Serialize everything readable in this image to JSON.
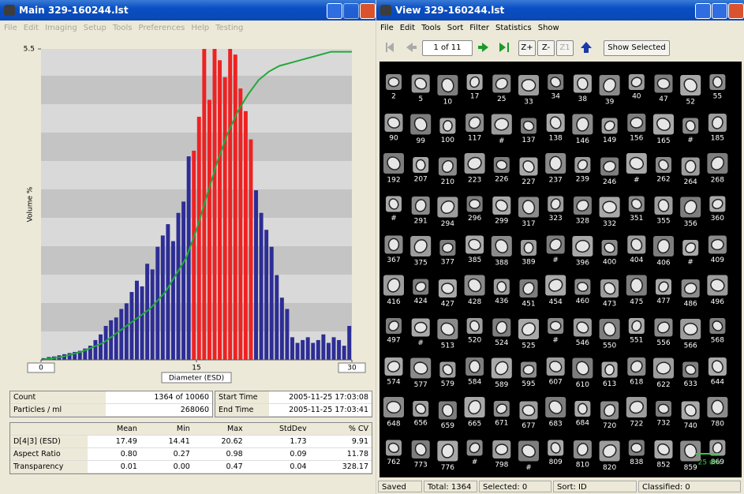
{
  "main_window": {
    "title": "Main  329-160244.lst",
    "menu": [
      "File",
      "Edit",
      "Imaging",
      "Setup",
      "Tools",
      "Preferences",
      "Help",
      "Testing"
    ],
    "summary": [
      [
        "Count",
        "1364  of  10060"
      ],
      [
        "Particles / ml",
        "268060"
      ]
    ],
    "times": [
      [
        "Start Time",
        "2005-11-25  17:03:08"
      ],
      [
        "End Time",
        "2005-11-25  17:03:41"
      ]
    ],
    "stats_table": {
      "header": [
        "Mean",
        "Min",
        "Max",
        "StdDev",
        "% CV"
      ],
      "rows": [
        [
          "D[4|3] (ESD)",
          "17.49",
          "14.41",
          "20.62",
          "1.73",
          "9.91"
        ],
        [
          "Aspect Ratio",
          "0.80",
          "0.27",
          "0.98",
          "0.09",
          "11.78"
        ],
        [
          "Transparency",
          "0.01",
          "0.00",
          "0.47",
          "0.04",
          "328.17"
        ]
      ]
    }
  },
  "chart_data": {
    "type": "histogram",
    "xlabel": "Diameter (ESD)",
    "ylabel": "Volume %",
    "bins": [
      0,
      0.5,
      1,
      1.5,
      2,
      2.5,
      3,
      3.5,
      4,
      4.5,
      5,
      5.5,
      6,
      6.5,
      7,
      7.5,
      8,
      8.5,
      9,
      9.5,
      10,
      10.5,
      11,
      11.5,
      12,
      12.5,
      13,
      13.5,
      14,
      14.5,
      15,
      15.5,
      16,
      16.5,
      17,
      17.5,
      18,
      18.5,
      19,
      19.5,
      20,
      20.5,
      21,
      21.5,
      22,
      22.5,
      23,
      23.5,
      24,
      24.5,
      25,
      25.5,
      26,
      26.5,
      27,
      27.5,
      28,
      28.5,
      29,
      29.5,
      30
    ],
    "values": [
      0.03,
      0.05,
      0.06,
      0.08,
      0.1,
      0.12,
      0.14,
      0.16,
      0.2,
      0.25,
      0.35,
      0.45,
      0.6,
      0.7,
      0.75,
      0.9,
      1.0,
      1.2,
      1.4,
      1.3,
      1.7,
      1.6,
      2.0,
      2.2,
      2.4,
      2.1,
      2.6,
      2.8,
      3.6,
      3.7,
      4.3,
      5.5,
      4.6,
      5.5,
      5.3,
      5.0,
      5.5,
      5.4,
      4.8,
      4.4,
      3.9,
      3.0,
      2.6,
      2.3,
      2.0,
      1.5,
      1.1,
      0.9,
      0.4,
      0.3,
      0.35,
      0.4,
      0.3,
      0.35,
      0.45,
      0.3,
      0.4,
      0.35,
      0.25,
      0.6
    ],
    "bar_colors": [
      "#2d2d95",
      "#2d2d95",
      "#2d2d95",
      "#2d2d95",
      "#2d2d95",
      "#2d2d95",
      "#2d2d95",
      "#2d2d95",
      "#2d2d95",
      "#2d2d95",
      "#2d2d95",
      "#2d2d95",
      "#2d2d95",
      "#2d2d95",
      "#2d2d95",
      "#2d2d95",
      "#2d2d95",
      "#2d2d95",
      "#2d2d95",
      "#2d2d95",
      "#2d2d95",
      "#2d2d95",
      "#2d2d95",
      "#2d2d95",
      "#2d2d95",
      "#2d2d95",
      "#2d2d95",
      "#2d2d95",
      "#2d2d95",
      "#ee2222",
      "#ee2222",
      "#ee2222",
      "#ee2222",
      "#ee2222",
      "#ee2222",
      "#ee2222",
      "#ee2222",
      "#ee2222",
      "#ee2222",
      "#ee2222",
      "#ee2222",
      "#2d2d95",
      "#2d2d95",
      "#2d2d95",
      "#2d2d95",
      "#2d2d95",
      "#2d2d95",
      "#2d2d95",
      "#2d2d95",
      "#2d2d95",
      "#2d2d95",
      "#2d2d95",
      "#2d2d95",
      "#2d2d95",
      "#2d2d95",
      "#2d2d95",
      "#2d2d95",
      "#2d2d95",
      "#2d2d95",
      "#2d2d95"
    ],
    "cumulative": {
      "color": "#22a83a",
      "x": [
        0,
        2,
        4,
        6,
        7.5,
        9,
        10.5,
        12,
        13,
        14,
        15,
        16,
        17,
        18,
        19,
        20,
        21,
        22,
        23,
        24,
        26,
        28,
        30
      ],
      "values": [
        0,
        0.05,
        0.15,
        0.3,
        0.5,
        0.7,
        0.9,
        1.2,
        1.5,
        1.8,
        2.3,
        2.9,
        3.5,
        4.0,
        4.4,
        4.7,
        4.95,
        5.1,
        5.2,
        5.25,
        5.35,
        5.45,
        5.45
      ]
    },
    "xlim": [
      0,
      30
    ],
    "xticks": [
      0,
      15,
      30
    ],
    "ylim": [
      0,
      5.5
    ],
    "yticks": [
      5.5
    ]
  },
  "view_window": {
    "title": "View  329-160244.lst",
    "menu": [
      "File",
      "Edit",
      "Tools",
      "Sort",
      "Filter",
      "Statistics",
      "Show"
    ],
    "page": "1 of 11",
    "zoom_buttons": [
      "Z+",
      "Z-",
      "Z1"
    ],
    "show_selected": "Show Selected",
    "particles": [
      [
        "2",
        "5",
        "10",
        "17",
        "25",
        "33",
        "34",
        "38",
        "39",
        "40",
        "47",
        "52",
        "55"
      ],
      [
        "90",
        "99",
        "100",
        "117",
        "#",
        "137",
        "138",
        "146",
        "149",
        "156",
        "165",
        "#",
        "185"
      ],
      [
        "192",
        "207",
        "210",
        "223",
        "226",
        "227",
        "237",
        "239",
        "246",
        "#",
        "262",
        "264",
        "268"
      ],
      [
        "#",
        "291",
        "294",
        "296",
        "299",
        "317",
        "323",
        "328",
        "332",
        "351",
        "355",
        "356",
        "360"
      ],
      [
        "367",
        "375",
        "377",
        "385",
        "388",
        "389",
        "#",
        "396",
        "400",
        "404",
        "406",
        "#",
        "409"
      ],
      [
        "416",
        "424",
        "427",
        "428",
        "436",
        "451",
        "454",
        "460",
        "473",
        "475",
        "477",
        "486",
        "496"
      ],
      [
        "497",
        "#",
        "513",
        "520",
        "524",
        "525",
        "#",
        "546",
        "550",
        "551",
        "556",
        "566",
        "568"
      ],
      [
        "574",
        "577",
        "579",
        "584",
        "589",
        "595",
        "607",
        "610",
        "613",
        "618",
        "622",
        "633",
        "644"
      ],
      [
        "648",
        "656",
        "659",
        "665",
        "671",
        "677",
        "683",
        "684",
        "720",
        "722",
        "732",
        "740",
        "780"
      ],
      [
        "762",
        "773",
        "776",
        "#",
        "798",
        "#",
        "809",
        "810",
        "820",
        "838",
        "852",
        "859",
        "869"
      ]
    ],
    "scale_bar": "25 um",
    "status": [
      "Saved",
      "Total: 1364",
      "Selected: 0",
      "Sort: ID",
      "Classified: 0"
    ]
  }
}
